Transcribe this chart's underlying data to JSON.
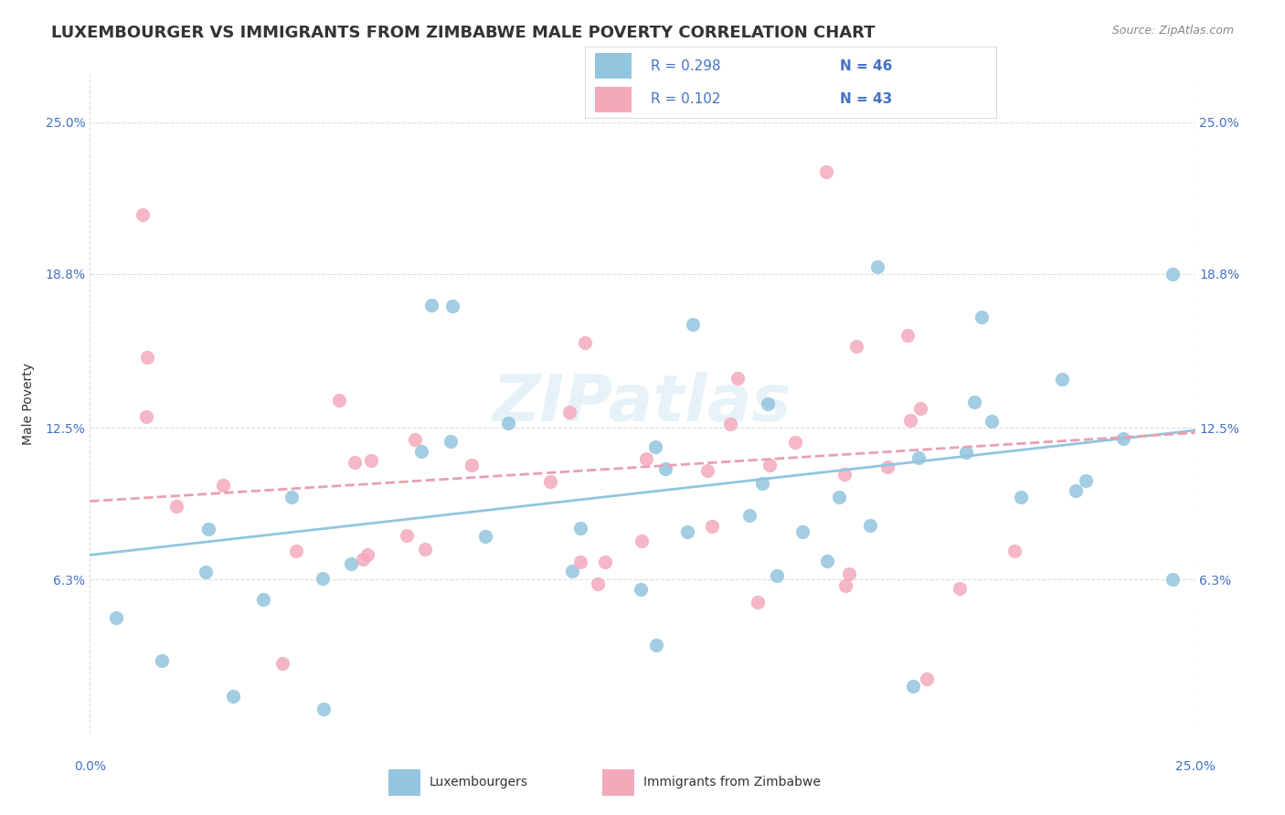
{
  "title": "LUXEMBOURGER VS IMMIGRANTS FROM ZIMBABWE MALE POVERTY CORRELATION CHART",
  "source": "Source: ZipAtlas.com",
  "ylabel": "Male Poverty",
  "ytick_labels": [
    "6.3%",
    "12.5%",
    "18.8%",
    "25.0%"
  ],
  "ytick_values": [
    0.063,
    0.125,
    0.188,
    0.25
  ],
  "xlim": [
    0.0,
    0.25
  ],
  "ylim": [
    0.0,
    0.27
  ],
  "legend_r1": "R = 0.298",
  "legend_n1": "N = 46",
  "legend_r2": "R = 0.102",
  "legend_n2": "N = 43",
  "color_blue": "#92C5DE",
  "color_pink": "#F4A9BB",
  "legend_label1": "Luxembourgers",
  "legend_label2": "Immigrants from Zimbabwe",
  "blue_trend_start": 0.073,
  "blue_trend_end": 0.124,
  "pink_trend_start": 0.095,
  "pink_trend_end": 0.123,
  "title_fontsize": 13,
  "axis_label_fontsize": 10,
  "tick_fontsize": 10,
  "source_fontsize": 9
}
